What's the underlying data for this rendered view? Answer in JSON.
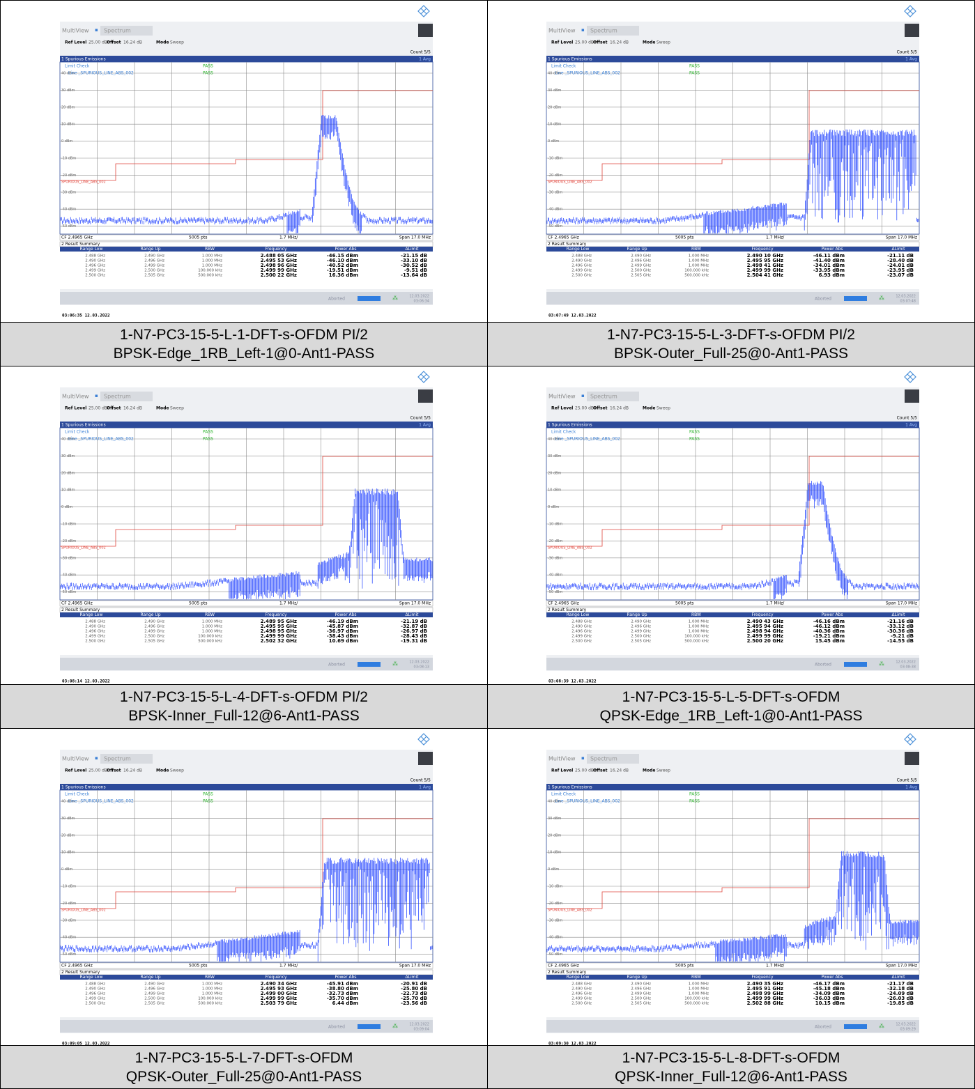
{
  "instrument": {
    "tab_multiview": "MultiView",
    "tab_spectrum": "Spectrum",
    "ref_level_label": "Ref Level",
    "ref_level": "25.00 dBm",
    "offset_label": "Offset",
    "offset": "16.24 dB",
    "mode_label": "Mode",
    "mode": "Sweep",
    "count": "Count 5/5",
    "window1": "1 Spurious Emissions",
    "trace": "1 Avg",
    "limit_check": "Limit Check",
    "pass": "PASS",
    "line_label": "Line _SPURIOUS_LINE_ABS_002",
    "y_labels": [
      "40 dBm",
      "30 dBm",
      "20 dBm",
      "10 dBm",
      "0 dBm",
      "-10 dBm",
      "-20 dBm",
      "-30 dBm",
      "-40 dBm",
      "-50 dBm"
    ],
    "limit_line_label": "SPURIOUS_LINE_ABS_002",
    "cf": "CF 2.4965 GHz",
    "pts": "5005 pts",
    "div": "1.7 MHz/",
    "span": "Span 17.0 MHz",
    "window2": "2 Result Summary",
    "headers": [
      "Range Low",
      "Range Up",
      "RBW",
      "Frequency",
      "Power Abs",
      "ΔLimit"
    ],
    "ranges": [
      [
        "2.488 GHz",
        "2.490 GHz",
        "1.000 MHz"
      ],
      [
        "2.490 GHz",
        "2.496 GHz",
        "1.000 MHz"
      ],
      [
        "2.496 GHz",
        "2.499 GHz",
        "1.000 MHz"
      ],
      [
        "2.499 GHz",
        "2.500 GHz",
        "100.000 kHz"
      ],
      [
        "2.500 GHz",
        "2.505 GHz",
        "500.000 kHz"
      ]
    ],
    "aborted": "Aborted"
  },
  "panels": [
    {
      "results": [
        [
          "2.488 05 GHz",
          "-46.15 dBm",
          "-21.15 dB"
        ],
        [
          "2.495 53 GHz",
          "-46.10 dBm",
          "-33.10 dB"
        ],
        [
          "2.498 96 GHz",
          "-40.52 dBm",
          "-30.52 dB"
        ],
        [
          "2.499 99 GHz",
          "-19.51 dBm",
          "-9.51 dB"
        ],
        [
          "2.500 22 GHz",
          "16.36 dBm",
          "-13.64 dB"
        ]
      ],
      "status_date": "12.03.2022",
      "status_time": "03:06:34",
      "timestamp": "03:06:35  12.03.2022",
      "caption": [
        "1-N7-PC3-15-5-L-1-DFT-s-OFDM PI/2",
        "BPSK-Edge_1RB_Left-1@0-Ant1-PASS"
      ]
    },
    {
      "results": [
        [
          "2.490 10 GHz",
          "-46.11 dBm",
          "-21.11 dB"
        ],
        [
          "2.495 95 GHz",
          "-41.40 dBm",
          "-28.40 dB"
        ],
        [
          "2.498 41 GHz",
          "-34.01 dBm",
          "-24.01 dB"
        ],
        [
          "2.499 99 GHz",
          "-33.95 dBm",
          "-23.95 dB"
        ],
        [
          "2.504 41 GHz",
          "6.93 dBm",
          "-23.07 dB"
        ]
      ],
      "status_date": "12.03.2022",
      "status_time": "03:07:48",
      "timestamp": "03:07:49  12.03.2022",
      "caption": [
        "1-N7-PC3-15-5-L-3-DFT-s-OFDM PI/2",
        "BPSK-Outer_Full-25@0-Ant1-PASS"
      ]
    },
    {
      "results": [
        [
          "2.489 95 GHz",
          "-46.19 dBm",
          "-21.19 dB"
        ],
        [
          "2.495 95 GHz",
          "-45.87 dBm",
          "-32.87 dB"
        ],
        [
          "2.498 95 GHz",
          "-36.97 dBm",
          "-26.97 dB"
        ],
        [
          "2.499 99 GHz",
          "-38.43 dBm",
          "-28.43 dB"
        ],
        [
          "2.502 32 GHz",
          "10.69 dBm",
          "-19.31 dB"
        ]
      ],
      "status_date": "12.03.2022",
      "status_time": "03:08:13",
      "timestamp": "03:08:14  12.03.2022",
      "caption": [
        "1-N7-PC3-15-5-L-4-DFT-s-OFDM PI/2",
        "BPSK-Inner_Full-12@6-Ant1-PASS"
      ]
    },
    {
      "results": [
        [
          "2.490 43 GHz",
          "-46.16 dBm",
          "-21.16 dB"
        ],
        [
          "2.495 94 GHz",
          "-46.12 dBm",
          "-33.12 dB"
        ],
        [
          "2.498 94 GHz",
          "-40.36 dBm",
          "-30.36 dB"
        ],
        [
          "2.499 99 GHz",
          "-19.21 dBm",
          "-9.21 dB"
        ],
        [
          "2.500 20 GHz",
          "15.45 dBm",
          "-14.55 dB"
        ]
      ],
      "status_date": "12.03.2022",
      "status_time": "03:08:38",
      "timestamp": "03:08:39  12.03.2022",
      "caption": [
        "1-N7-PC3-15-5-L-5-DFT-s-OFDM",
        "QPSK-Edge_1RB_Left-1@0-Ant1-PASS"
      ]
    },
    {
      "results": [
        [
          "2.490 34 GHz",
          "-45.91 dBm",
          "-20.91 dB"
        ],
        [
          "2.495 93 GHz",
          "-38.80 dBm",
          "-25.80 dB"
        ],
        [
          "2.499 00 GHz",
          "-32.73 dBm",
          "-22.73 dB"
        ],
        [
          "2.499 99 GHz",
          "-35.70 dBm",
          "-25.70 dB"
        ],
        [
          "2.503 79 GHz",
          "6.44 dBm",
          "-23.56 dB"
        ]
      ],
      "status_date": "12.03.2022",
      "status_time": "03:09:04",
      "timestamp": "03:09:05  12.03.2022",
      "caption": [
        "1-N7-PC3-15-5-L-7-DFT-s-OFDM",
        "QPSK-Outer_Full-25@0-Ant1-PASS"
      ]
    },
    {
      "results": [
        [
          "2.490 35 GHz",
          "-46.17 dBm",
          "-21.17 dB"
        ],
        [
          "2.495 91 GHz",
          "-45.18 dBm",
          "-32.18 dB"
        ],
        [
          "2.498 99 GHz",
          "-34.09 dBm",
          "-24.09 dB"
        ],
        [
          "2.499 99 GHz",
          "-36.03 dBm",
          "-26.03 dB"
        ],
        [
          "2.502 88 GHz",
          "10.15 dBm",
          "-19.85 dB"
        ]
      ],
      "status_date": "12.03.2022",
      "status_time": "03:09:29",
      "timestamp": "03:09:30  12.03.2022",
      "caption": [
        "1-N7-PC3-15-5-L-8-DFT-s-OFDM",
        "QPSK-Inner_Full-12@6-Ant1-PASS"
      ]
    }
  ]
}
